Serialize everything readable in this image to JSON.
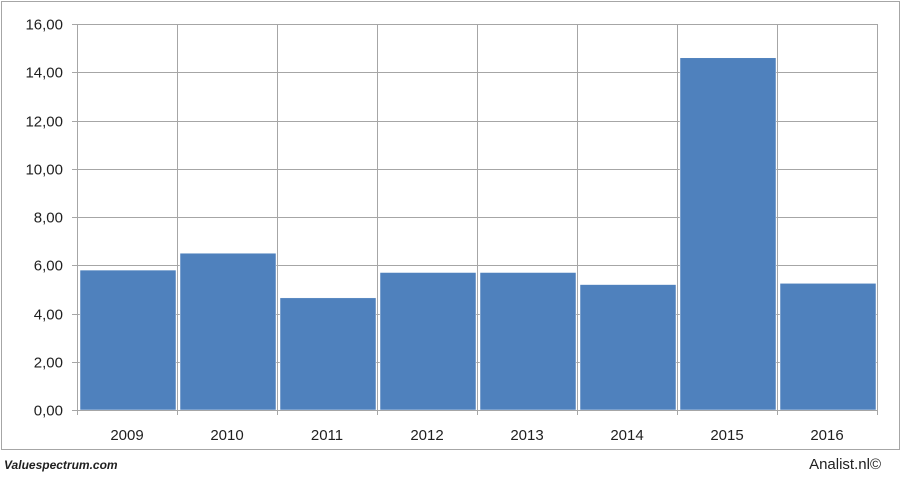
{
  "chart_data": {
    "type": "bar",
    "categories": [
      "2009",
      "2010",
      "2011",
      "2012",
      "2013",
      "2014",
      "2015",
      "2016"
    ],
    "values": [
      5.8,
      6.5,
      4.65,
      5.7,
      5.7,
      5.2,
      14.6,
      5.25
    ],
    "ylim": [
      0,
      16
    ],
    "yticks": [
      "0,00",
      "2,00",
      "4,00",
      "6,00",
      "8,00",
      "10,00",
      "12,00",
      "14,00",
      "16,00"
    ],
    "grid": true,
    "bar_color": "#4f81bd",
    "grid_color": "#a6a6a6",
    "title": "",
    "xlabel": "",
    "ylabel": ""
  },
  "footer": {
    "source_left": "Valuespectrum.com",
    "source_right": "Analist.nl©"
  }
}
